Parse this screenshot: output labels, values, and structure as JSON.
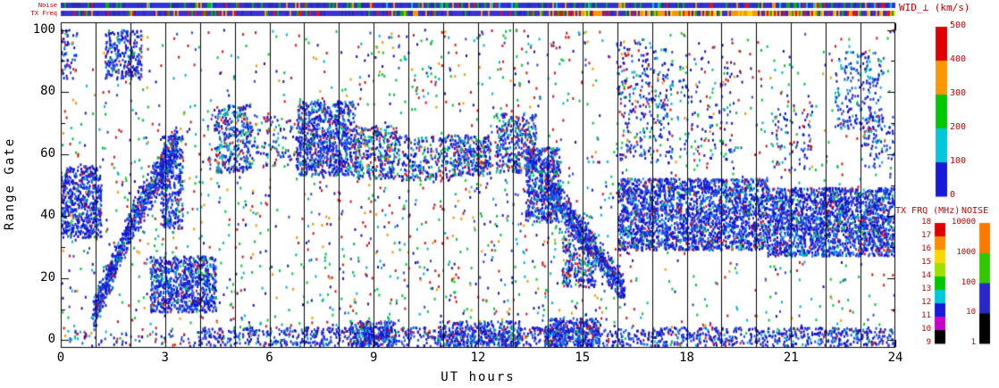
{
  "figure": {
    "bg": "#ffffff",
    "axis_color": "#000000",
    "annotation_color": "#cc0000"
  },
  "labels": {
    "xlabel": "UT hours",
    "ylabel": "Range Gate",
    "noise_strip": "Noise",
    "txfreq_strip": "TX Freq",
    "wid_title": "WID_⊥ (km/s)",
    "txfrq_title": "TX FRQ (MHz)",
    "noise_title": "NOISE"
  },
  "chart_data": {
    "type": "heatmap",
    "xlabel": "UT hours",
    "ylabel": "Range Gate",
    "xlim": [
      0,
      24
    ],
    "ylim": [
      -2.5,
      102.5
    ],
    "xticks": [
      0,
      3,
      6,
      9,
      12,
      15,
      18,
      21,
      24
    ],
    "x_minor_step": 1,
    "yticks": [
      0,
      20,
      40,
      60,
      80,
      100
    ],
    "y_minor_step": 10,
    "hour_gridlines": true,
    "seed": 1337,
    "point_size": [
      2,
      3
    ],
    "palettes": {
      "dense": [
        [
          "#1414cd",
          0.52
        ],
        [
          "#2e46e6",
          0.24
        ],
        [
          "#0064ff",
          0.08
        ],
        [
          "#00b4dc",
          0.07
        ],
        [
          "#00c83c",
          0.04
        ],
        [
          "#e11414",
          0.05
        ]
      ],
      "mid": [
        [
          "#1414cd",
          0.42
        ],
        [
          "#2e46e6",
          0.2
        ],
        [
          "#00b4dc",
          0.14
        ],
        [
          "#00c83c",
          0.09
        ],
        [
          "#e11414",
          0.09
        ],
        [
          "#ff9600",
          0.03
        ],
        [
          "#0064ff",
          0.03
        ]
      ],
      "cold": [
        [
          "#1414cd",
          0.38
        ],
        [
          "#2e46e6",
          0.3
        ],
        [
          "#00b4dc",
          0.32
        ]
      ],
      "noise": [
        [
          "#e11414",
          0.24
        ],
        [
          "#00c83c",
          0.24
        ],
        [
          "#00b4dc",
          0.16
        ],
        [
          "#1414cd",
          0.16
        ],
        [
          "#2e46e6",
          0.1
        ],
        [
          "#ff9600",
          0.1
        ]
      ]
    },
    "clusters": [
      [
        0,
        0.45,
        84,
        100,
        60,
        "mid"
      ],
      [
        0,
        1.15,
        33,
        56,
        550,
        "dense"
      ],
      [
        1.25,
        2.3,
        84,
        100,
        260,
        "dense"
      ],
      [
        2.55,
        4.45,
        9,
        27,
        800,
        "dense"
      ],
      [
        2.85,
        3.5,
        36,
        66,
        320,
        "dense"
      ],
      [
        4.4,
        5.45,
        54,
        76,
        330,
        "mid"
      ],
      [
        5.3,
        6.8,
        55,
        72,
        120,
        "mid"
      ],
      [
        6.75,
        8.45,
        53,
        77,
        850,
        "dense"
      ],
      [
        8.45,
        9.65,
        52,
        69,
        330,
        "mid"
      ],
      [
        9.65,
        11.2,
        51,
        66,
        240,
        "mid"
      ],
      [
        11.2,
        12.35,
        53,
        66,
        300,
        "mid"
      ],
      [
        12.5,
        13.65,
        54,
        73,
        360,
        "mid"
      ],
      [
        13.35,
        14.35,
        38,
        62,
        520,
        "dense"
      ],
      [
        14.4,
        15.35,
        17,
        35,
        260,
        "mid"
      ],
      [
        15.95,
        17.6,
        57,
        97,
        300,
        "mid"
      ],
      [
        17.7,
        19.6,
        58,
        92,
        130,
        "mid"
      ],
      [
        20.4,
        21.6,
        54,
        76,
        90,
        "mid"
      ],
      [
        22.25,
        23.65,
        68,
        93,
        220,
        "cold"
      ],
      [
        23.0,
        24,
        55,
        72,
        80,
        "mid"
      ],
      [
        16.0,
        20.3,
        29,
        52,
        2300,
        "dense"
      ],
      [
        20.3,
        24,
        27,
        49,
        2000,
        "dense"
      ],
      [
        3.9,
        24,
        -2,
        4,
        1500,
        "dense"
      ],
      [
        8.3,
        9.6,
        -2,
        6,
        250,
        "dense"
      ],
      [
        10.8,
        13.2,
        -2,
        6,
        300,
        "dense"
      ],
      [
        13.9,
        15.5,
        -2,
        7,
        280,
        "dense"
      ],
      [
        0,
        3.9,
        -2,
        3,
        70,
        "mid"
      ],
      [
        8.5,
        15.5,
        75,
        100,
        120,
        "noise"
      ]
    ],
    "bands": [
      [
        0.9,
        8,
        2.2,
        42,
        10,
        480,
        "dense"
      ],
      [
        2.2,
        42,
        3.35,
        63,
        11,
        420,
        "dense"
      ],
      [
        13.95,
        50,
        16.2,
        16,
        9,
        650,
        "dense"
      ]
    ],
    "noise_fields": [
      [
        0,
        24,
        0,
        100,
        1300,
        "noise"
      ],
      [
        7,
        16,
        2,
        60,
        330,
        "noise"
      ],
      [
        0,
        6,
        2,
        75,
        160,
        "noise"
      ]
    ],
    "strips": [
      {
        "label": "Noise",
        "segments": [
          {
            "upto": 1,
            "weights": [
              [
                "#3232d2",
                0.5
              ],
              [
                "#2a2ab4",
                0.2
              ],
              [
                "#00b400",
                0.14
              ],
              [
                "#ff9600",
                0.06
              ],
              [
                "#e11414",
                0.05
              ],
              [
                "#00c8dc",
                0.05
              ]
            ]
          }
        ]
      },
      {
        "label": "TX Freq",
        "segments": [
          {
            "upto": 0.6,
            "weights": [
              [
                "#3c32d2",
                0.62
              ],
              [
                "#2a2ab4",
                0.15
              ],
              [
                "#00b400",
                0.08
              ],
              [
                "#ff9600",
                0.07
              ],
              [
                "#e11414",
                0.08
              ]
            ]
          },
          {
            "upto": 1,
            "weights": [
              [
                "#3c32d2",
                0.3
              ],
              [
                "#ff9600",
                0.28
              ],
              [
                "#ffd200",
                0.14
              ],
              [
                "#e11414",
                0.14
              ],
              [
                "#00b400",
                0.07
              ],
              [
                "#2a2ab4",
                0.07
              ]
            ]
          }
        ]
      }
    ],
    "colorbars": [
      {
        "name": "wid",
        "title": "WID_⊥ (km/s)",
        "tick_labels": [
          "500",
          "400",
          "300",
          "200",
          "100",
          "0"
        ],
        "segment_colors_top_to_bottom": [
          "#e10000",
          "#ff9600",
          "#00c800",
          "#00c8dc",
          "#1919dc"
        ]
      },
      {
        "name": "txfrq",
        "title": "TX FRQ (MHz)",
        "tick_labels": [
          "18",
          "17",
          "16",
          "15",
          "14",
          "13",
          "12",
          "11",
          "10",
          "9"
        ],
        "segment_colors_top_to_bottom": [
          "#e10000",
          "#ff8c00",
          "#ffd700",
          "#a0e000",
          "#00c800",
          "#00c8dc",
          "#1919dc",
          "#c800c8",
          "#000000"
        ]
      },
      {
        "name": "noise",
        "title": "NOISE",
        "tick_labels": [
          "10000",
          "1000",
          "100",
          "10",
          "1"
        ],
        "segment_colors_top_to_bottom": [
          "#ff7800",
          "#32c800",
          "#2828c8",
          "#000000"
        ]
      }
    ]
  }
}
